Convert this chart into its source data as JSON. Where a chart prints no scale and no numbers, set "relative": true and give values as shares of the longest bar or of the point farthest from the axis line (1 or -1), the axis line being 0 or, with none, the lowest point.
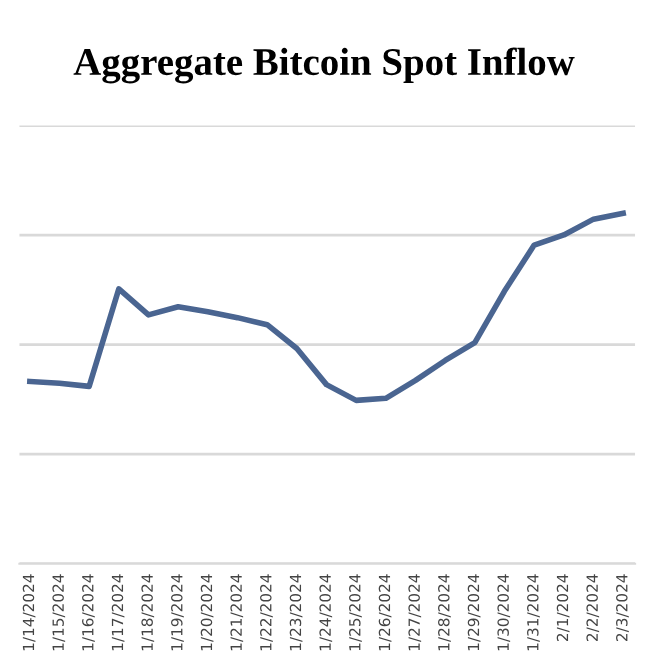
{
  "chart_data": {
    "type": "line",
    "title": "Aggregate Bitcoin Spot Inflow",
    "relative": true,
    "grid": "y",
    "marker": "none",
    "line_style": "solid",
    "categories": [
      "1/14/2024",
      "1/15/2024",
      "1/16/2024",
      "1/17/2024",
      "1/18/2024",
      "1/19/2024",
      "1/20/2024",
      "1/21/2024",
      "1/22/2024",
      "1/23/2024",
      "1/24/2024",
      "1/25/2024",
      "1/26/2024",
      "1/27/2024",
      "1/28/2024",
      "1/29/2024",
      "1/30/2024",
      "1/31/2024",
      "2/1/2024",
      "2/2/2024",
      "2/3/2024"
    ],
    "series": [
      {
        "color": "#4a6591",
        "values": [
          0.52,
          0.515,
          0.506,
          0.784,
          0.71,
          0.733,
          0.719,
          0.702,
          0.682,
          0.614,
          0.511,
          0.466,
          0.472,
          0.523,
          0.58,
          0.631,
          0.778,
          0.909,
          0.938,
          0.983,
          1.0
        ]
      }
    ]
  }
}
